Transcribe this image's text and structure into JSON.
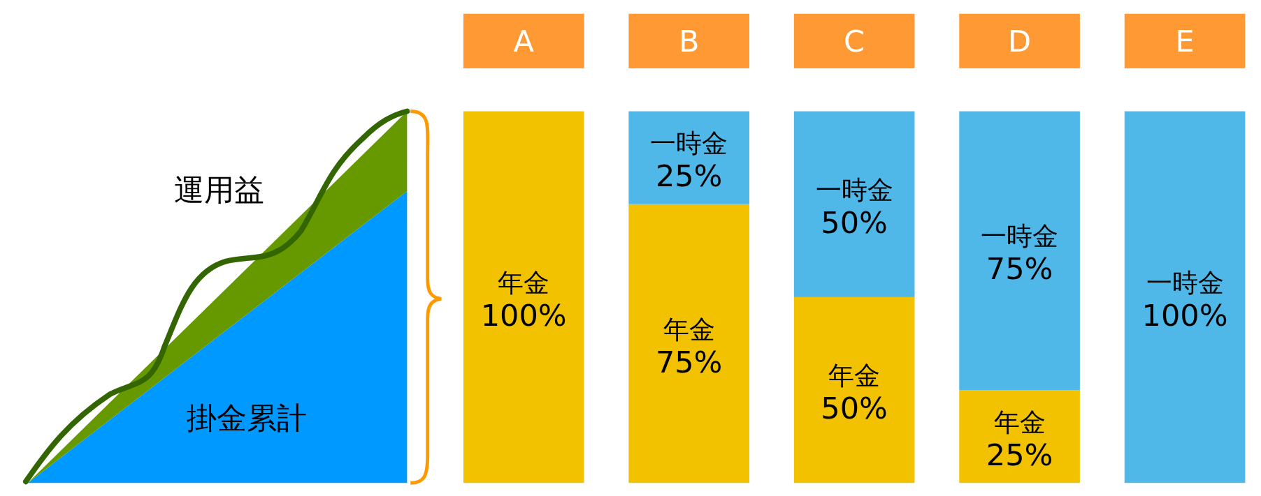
{
  "chart_data": {
    "type": "bar",
    "stacked": true,
    "categories": [
      "A",
      "B",
      "C",
      "D",
      "E"
    ],
    "series": [
      {
        "name": "年金",
        "color": "#f2c200",
        "values": [
          100,
          75,
          50,
          25,
          0
        ],
        "value_labels": [
          "100%",
          "75%",
          "50%",
          "25%",
          null
        ]
      },
      {
        "name": "一時金",
        "color": "#4fb8e8",
        "values": [
          0,
          25,
          50,
          75,
          100
        ],
        "value_labels": [
          null,
          "25%",
          "50%",
          "75%",
          "100%"
        ]
      }
    ],
    "annotations": [
      "運用益",
      "掛金累計"
    ]
  }
}
